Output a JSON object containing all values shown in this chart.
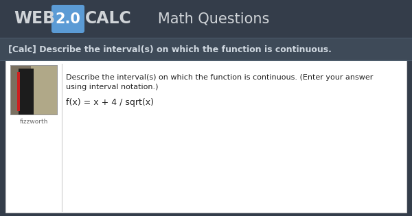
{
  "header_bg": "#343d4a",
  "badge_bg": "#5b9bd5",
  "section_bg": "#3e4a58",
  "section_border": "#4d5d6e",
  "content_bg": "#ffffff",
  "content_border": "#cccccc",
  "divider_color": "#cccccc",
  "header_text_web": "WEB",
  "header_text_20": "2.0",
  "header_text_calc": "CALC",
  "header_text_right": "   Math Questions",
  "section_text": "[Calc] Describe the interval(s) on which the function is continuous.",
  "body_line1": "Describe the interval(s) on which the function is continuous. (Enter your answer",
  "body_line2": "using interval notation.)",
  "body_formula": "f(x) = x + 4 / sqrt(x)",
  "img_label": "fizzworth",
  "header_font_color": "#d0d4d8",
  "section_font_color": "#d0d8e0",
  "body_font_color": "#222222",
  "label_font_color": "#666666",
  "fig_w": 6.0,
  "fig_h": 3.15,
  "dpi": 100
}
